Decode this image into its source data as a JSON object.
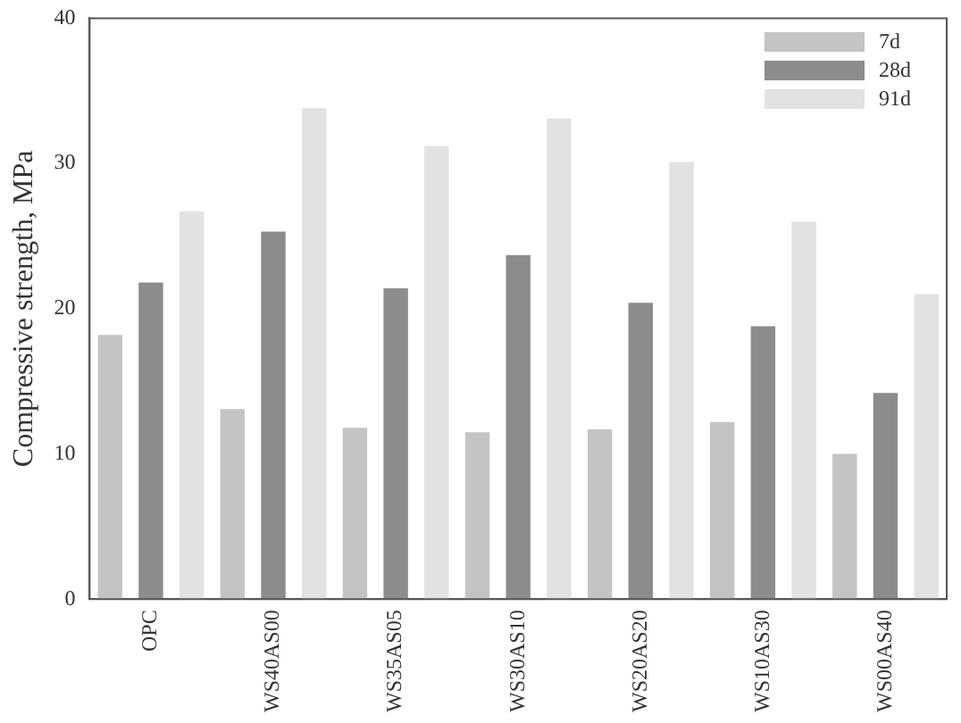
{
  "chart_data": {
    "type": "bar",
    "ylabel": "Compressive strength, MPa",
    "categories": [
      "OPC",
      "WS40AS00",
      "WS35AS05",
      "WS30AS10",
      "WS20AS20",
      "WS10AS30",
      "WS00AS40"
    ],
    "series": [
      {
        "name": "7d",
        "color": "#c4c4c4",
        "values": [
          18.2,
          13.1,
          11.8,
          11.5,
          11.7,
          12.2,
          10.0
        ]
      },
      {
        "name": "28d",
        "color": "#8c8c8c",
        "values": [
          21.8,
          25.3,
          21.4,
          23.7,
          20.4,
          18.8,
          14.2
        ]
      },
      {
        "name": "91d",
        "color": "#e2e2e2",
        "values": [
          26.7,
          33.8,
          31.2,
          33.1,
          30.1,
          26.0,
          21.0
        ]
      }
    ],
    "ylim": [
      0,
      40
    ],
    "yticks": [
      0,
      10,
      20,
      30,
      40
    ],
    "grid": false,
    "legend": "top right"
  }
}
